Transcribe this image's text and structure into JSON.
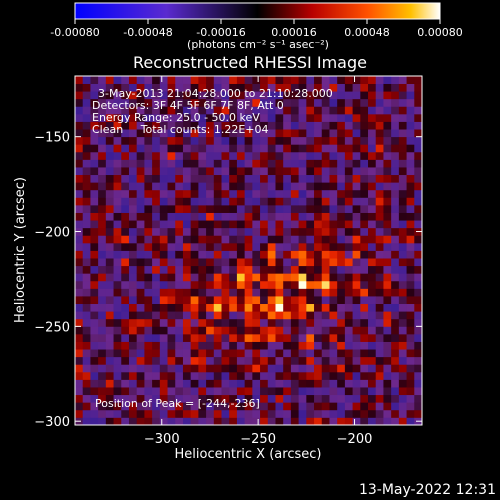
{
  "colorbar": {
    "tick_labels": [
      "-0.00080",
      "-0.00048",
      "-0.00016",
      "0.00016",
      "0.00048",
      "0.00080"
    ],
    "range": [
      -0.0008,
      0.0008
    ],
    "unit_label": "(photons cm⁻² s⁻¹ asec⁻²)"
  },
  "chart_data": {
    "type": "heatmap",
    "title": "Reconstructed RHESSI Image",
    "xlabel": "Heliocentric X (arcsec)",
    "ylabel": "Heliocentric Y (arcsec)",
    "xlim": [
      -345,
      -165
    ],
    "ylim": [
      -302,
      -118
    ],
    "x_ticks": [
      -300,
      -250,
      -200
    ],
    "y_ticks": [
      -300,
      -250,
      -200,
      -150
    ],
    "x_tick_labels": [
      "−300",
      "−250",
      "−200"
    ],
    "y_tick_labels": [
      "−300",
      "−250",
      "−200",
      "−150"
    ],
    "peak_position": [
      -244,
      -236
    ],
    "annotations": [
      "3-May-2013 21:04:28.000 to 21:10:28.000",
      "Detectors: 3F 4F 5F 6F 7F 8F, Att 0",
      "Energy Range: 25.0 - 50.0 keV",
      "Clean     Total counts: 1.22E+04"
    ],
    "peak_label": "Position of Peak = [-244,-236]"
  },
  "footer": {
    "timestamp": "13-May-2022 12:31"
  }
}
